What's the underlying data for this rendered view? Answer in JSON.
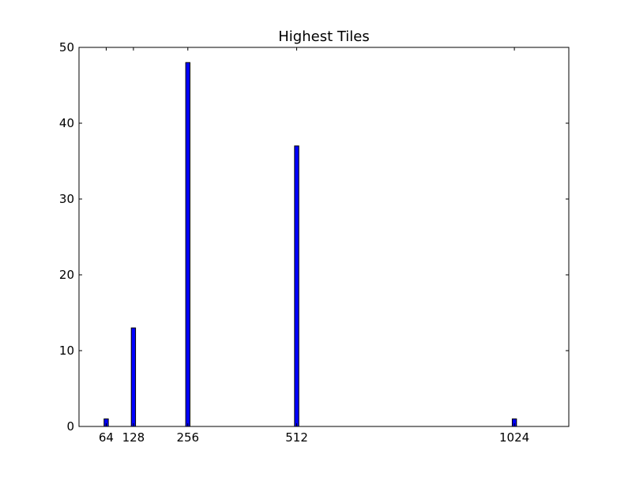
{
  "chart_data": {
    "type": "bar",
    "title": "Highest Tiles",
    "xlabel": "",
    "ylabel": "",
    "x": [
      64,
      128,
      256,
      512,
      1024
    ],
    "values": [
      1,
      13,
      48,
      37,
      1
    ],
    "xlim": [
      0,
      1152
    ],
    "ylim": [
      0,
      50
    ],
    "xticks": [
      64,
      128,
      256,
      512,
      1024
    ],
    "yticks": [
      0,
      10,
      20,
      30,
      40,
      50
    ],
    "grid": false,
    "bar_color": "#0000ff"
  }
}
